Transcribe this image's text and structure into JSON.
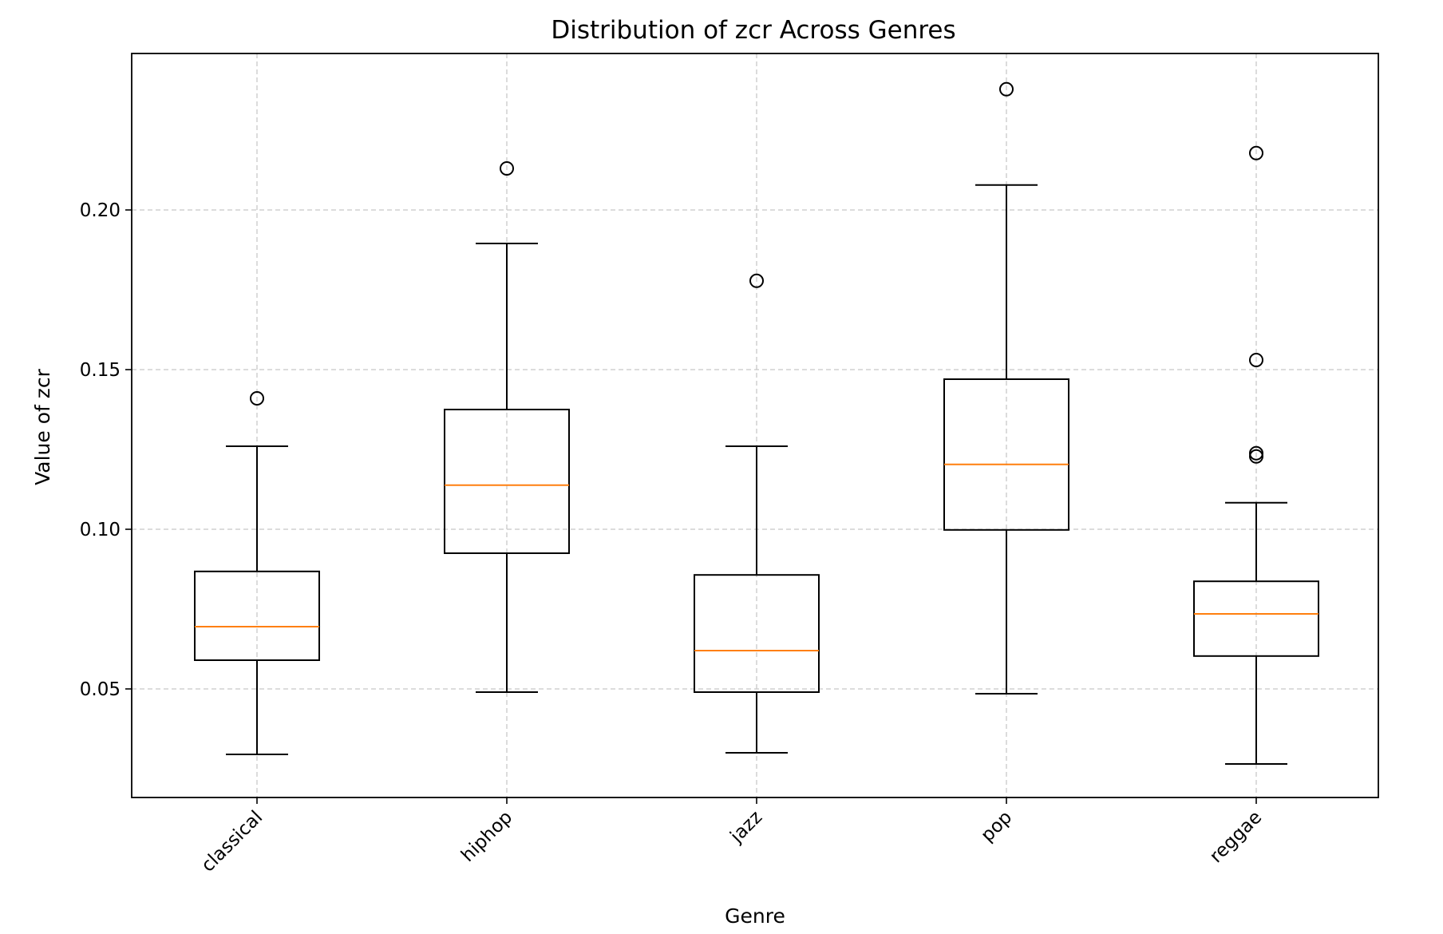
{
  "chart_data": {
    "type": "boxplot",
    "title": "Distribution of zcr Across Genres",
    "xlabel": "Genre",
    "ylabel": "Value of zcr",
    "categories": [
      "classical",
      "hiphop",
      "jazz",
      "pop",
      "reggae"
    ],
    "ylim": [
      0.016,
      0.249
    ],
    "yticks": [
      0.05,
      0.1,
      0.15,
      0.2
    ],
    "ytick_labels": [
      "0.05",
      "0.10",
      "0.15",
      "0.20"
    ],
    "grid": true,
    "boxes": [
      {
        "category": "classical",
        "whisker_low": 0.0295,
        "q1": 0.059,
        "median": 0.0695,
        "q3": 0.0868,
        "whisker_high": 0.126,
        "fliers": [
          0.141
        ]
      },
      {
        "category": "hiphop",
        "whisker_low": 0.049,
        "q1": 0.0925,
        "median": 0.1138,
        "q3": 0.1375,
        "whisker_high": 0.1895,
        "fliers": [
          0.213
        ]
      },
      {
        "category": "jazz",
        "whisker_low": 0.03,
        "q1": 0.049,
        "median": 0.062,
        "q3": 0.0857,
        "whisker_high": 0.126,
        "fliers": [
          0.1778
        ]
      },
      {
        "category": "pop",
        "whisker_low": 0.0485,
        "q1": 0.0998,
        "median": 0.1203,
        "q3": 0.147,
        "whisker_high": 0.2078,
        "fliers": [
          0.2378
        ]
      },
      {
        "category": "reggae",
        "whisker_low": 0.0265,
        "q1": 0.0603,
        "median": 0.0735,
        "q3": 0.0837,
        "whisker_high": 0.1083,
        "fliers": [
          0.1228,
          0.1238,
          0.153,
          0.2178
        ]
      }
    ],
    "colors": {
      "median": "#ff7f0e",
      "box": "#000000",
      "grid": "#c8c8c8"
    }
  }
}
